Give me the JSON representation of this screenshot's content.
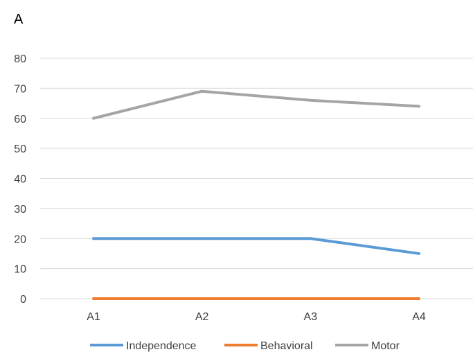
{
  "chart_data": {
    "type": "line",
    "panel_label": "A",
    "title": "",
    "xlabel": "",
    "ylabel": "",
    "categories": [
      "A1",
      "A2",
      "A3",
      "A4"
    ],
    "ylim": [
      0,
      80
    ],
    "yticks": [
      0,
      10,
      20,
      30,
      40,
      50,
      60,
      70,
      80
    ],
    "grid": true,
    "legend_position": "bottom",
    "series": [
      {
        "name": "Independence",
        "values": [
          20,
          20,
          20,
          15
        ],
        "color": "#5B9BD5"
      },
      {
        "name": "Behavioral",
        "values": [
          0,
          0,
          0,
          0
        ],
        "color": "#ED7D31"
      },
      {
        "name": "Motor",
        "values": [
          60,
          69,
          66,
          64
        ],
        "color": "#A5A5A5"
      }
    ]
  }
}
